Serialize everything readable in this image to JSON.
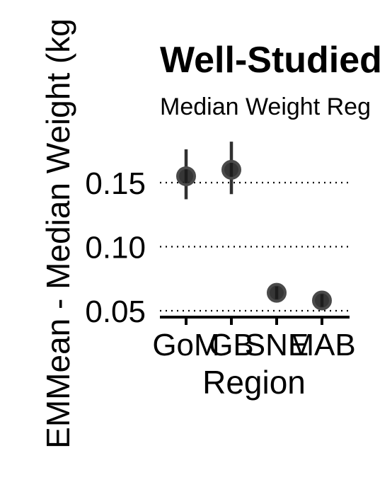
{
  "chart_data": {
    "type": "scatter",
    "title": "Well-Studied",
    "subtitle": "Median Weight Reg",
    "xlabel": "Region",
    "ylabel": "EMMean - Median Weight (kg",
    "categories": [
      "GoM",
      "GB",
      "SNE",
      "MAB"
    ],
    "values": [
      0.155,
      0.16,
      0.064,
      0.058
    ],
    "lower": [
      0.137,
      0.141,
      0.059,
      0.053
    ],
    "upper": [
      0.176,
      0.182,
      0.069,
      0.063
    ],
    "yticks": [
      0.05,
      0.1,
      0.15
    ],
    "ytick_labels": [
      "0.05",
      "0.10",
      "0.15"
    ],
    "ylim": [
      0.045,
      0.19
    ],
    "grid": "horizontal-dotted",
    "legend": "none",
    "point_color": "#1a1a1a"
  }
}
